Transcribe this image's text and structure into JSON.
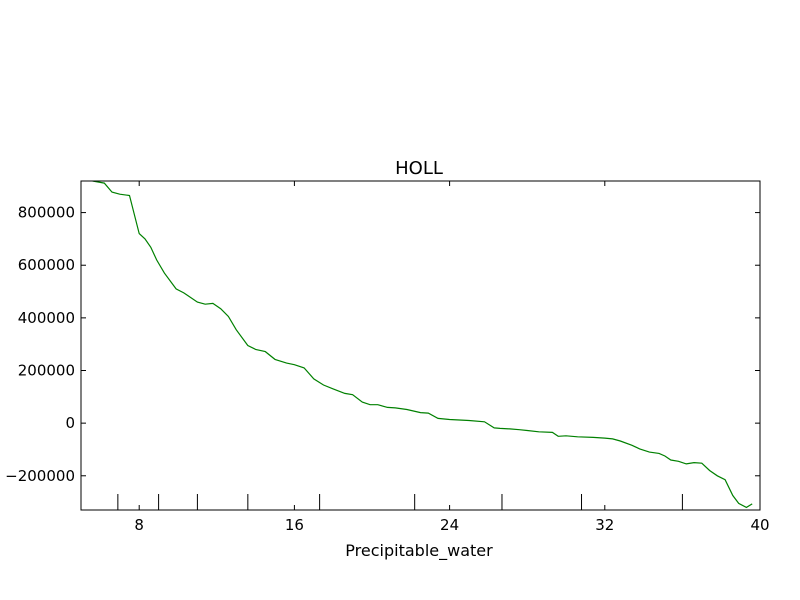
{
  "chart_data": {
    "type": "line",
    "title": "HOLL",
    "xlabel": "Precipitable_water",
    "ylabel": "",
    "xlim": [
      5,
      40
    ],
    "ylim": [
      -330000,
      920000
    ],
    "x_ticks": [
      8,
      16,
      24,
      32,
      40
    ],
    "y_ticks": [
      -200000,
      0,
      200000,
      400000,
      600000,
      800000
    ],
    "x_tick_labels": [
      "8",
      "16",
      "24",
      "32",
      "40"
    ],
    "y_tick_labels": [
      "−200000",
      "0",
      "200000",
      "400000",
      "600000",
      "800000"
    ],
    "rug": [
      6.9,
      9.0,
      11.0,
      13.6,
      17.3,
      22.2,
      26.7,
      30.8,
      36.0
    ],
    "grid": false,
    "series": [
      {
        "color": "#008000",
        "x": [
          5.6,
          6.2,
          6.6,
          7.0,
          7.5,
          8.0,
          8.3,
          8.6,
          8.9,
          9.3,
          9.9,
          10.3,
          10.5,
          11.0,
          11.4,
          11.8,
          12.2,
          12.6,
          13.0,
          13.6,
          14.0,
          14.5,
          15.0,
          15.6,
          16.0,
          16.5,
          17.0,
          17.5,
          18.0,
          18.6,
          19.0,
          19.5,
          19.9,
          20.3,
          20.8,
          21.2,
          21.8,
          22.5,
          22.9,
          23.4,
          24.0,
          25.0,
          25.8,
          26.3,
          26.6,
          27.1,
          27.6,
          28.0,
          28.6,
          29.3,
          29.6,
          30.0,
          30.6,
          31.4,
          32.0,
          32.4,
          32.8,
          33.4,
          33.8,
          34.3,
          34.8,
          35.1,
          35.4,
          35.8,
          36.2,
          36.6,
          37.0,
          37.4,
          37.8,
          38.2,
          38.6,
          38.9,
          39.3,
          39.6
        ],
        "y": [
          920000,
          912000,
          878000,
          870000,
          865000,
          720000,
          700000,
          668000,
          620000,
          570000,
          510000,
          495000,
          485000,
          460000,
          452000,
          455000,
          435000,
          405000,
          355000,
          295000,
          280000,
          272000,
          242000,
          228000,
          222000,
          210000,
          168000,
          145000,
          130000,
          113000,
          108000,
          80000,
          70000,
          70000,
          60000,
          58000,
          52000,
          40000,
          38000,
          18000,
          14000,
          10000,
          5000,
          -18000,
          -20000,
          -22000,
          -25000,
          -28000,
          -33000,
          -35000,
          -50000,
          -48000,
          -52000,
          -54000,
          -57000,
          -60000,
          -68000,
          -84000,
          -98000,
          -110000,
          -115000,
          -125000,
          -140000,
          -145000,
          -155000,
          -150000,
          -152000,
          -180000,
          -200000,
          -215000,
          -275000,
          -305000,
          -320000,
          -307000
        ]
      }
    ]
  }
}
